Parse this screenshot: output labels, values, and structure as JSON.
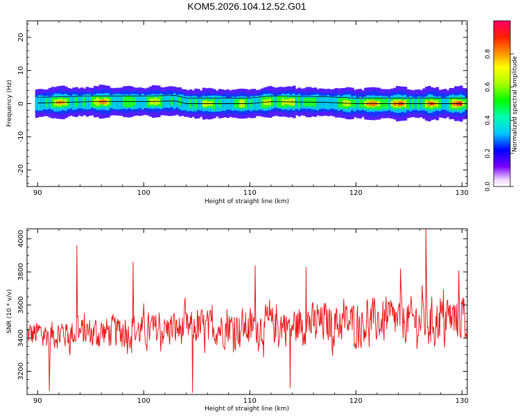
{
  "title": "KOM5.2026.104.12.52.G01",
  "chart_data": [
    {
      "type": "heatmap",
      "xlabel": "Height of straight line (km)",
      "ylabel": "Frequency (Hz)",
      "xlim": [
        89,
        130.5
      ],
      "ylim": [
        -25,
        25
      ],
      "xticks": [
        90,
        100,
        110,
        120,
        130
      ],
      "yticks": [
        20,
        10,
        0,
        -10,
        -20
      ],
      "colorbar": {
        "label": "Normalized spectral amplitude",
        "range": [
          0,
          1
        ],
        "ticks": [
          "0.0",
          "0.2",
          "0.4",
          "0.6",
          "0.8"
        ]
      },
      "band": {
        "description_free": true,
        "center_hz_at_km": [
          [
            90,
            0.2
          ],
          [
            95,
            0.6
          ],
          [
            100,
            0.6
          ],
          [
            103,
            0.8
          ],
          [
            104,
            0.0
          ],
          [
            110,
            0.0
          ],
          [
            112,
            0.6
          ],
          [
            117,
            0.4
          ],
          [
            120,
            0.0
          ],
          [
            130.5,
            0.0
          ]
        ],
        "peaks": [
          {
            "km": 92,
            "amp": 0.85
          },
          {
            "km": 96,
            "amp": 0.95
          },
          {
            "km": 98.5,
            "amp": 0.6
          },
          {
            "km": 101,
            "amp": 0.75
          },
          {
            "km": 106,
            "amp": 0.7
          },
          {
            "km": 109,
            "amp": 0.65
          },
          {
            "km": 111.5,
            "amp": 0.7
          },
          {
            "km": 113.5,
            "amp": 0.8
          },
          {
            "km": 119,
            "amp": 0.7
          },
          {
            "km": 121.5,
            "amp": 0.95
          },
          {
            "km": 124,
            "amp": 0.95
          },
          {
            "km": 127,
            "amp": 0.9
          },
          {
            "km": 129.5,
            "amp": 0.95
          }
        ]
      }
    },
    {
      "type": "line",
      "xlabel": "Height of straight line (km)",
      "ylabel": "SNR (10 * v/v)",
      "xlim": [
        89,
        130.5
      ],
      "ylim": [
        3060,
        4060
      ],
      "xticks": [
        90,
        100,
        110,
        120,
        130
      ],
      "yticks": [
        3200,
        3400,
        3600,
        3800,
        4000
      ],
      "color": "#e8191c",
      "series": [
        {
          "name": "SNR",
          "x_range": [
            89,
            130.5
          ],
          "sample_step_km": 0.05,
          "baseline_start": 3420,
          "baseline_end": 3520,
          "noise_amplitude": 140,
          "notable_points": [
            {
              "x": 93.7,
              "y": 3960
            },
            {
              "x": 126.6,
              "y": 4060
            },
            {
              "x": 110.5,
              "y": 3840
            },
            {
              "x": 115.3,
              "y": 3830
            },
            {
              "x": 124.2,
              "y": 3820
            },
            {
              "x": 129.7,
              "y": 3810
            },
            {
              "x": 99.0,
              "y": 3860
            },
            {
              "x": 91.1,
              "y": 3080
            },
            {
              "x": 104.6,
              "y": 3070
            },
            {
              "x": 113.8,
              "y": 3100
            }
          ]
        }
      ]
    }
  ]
}
